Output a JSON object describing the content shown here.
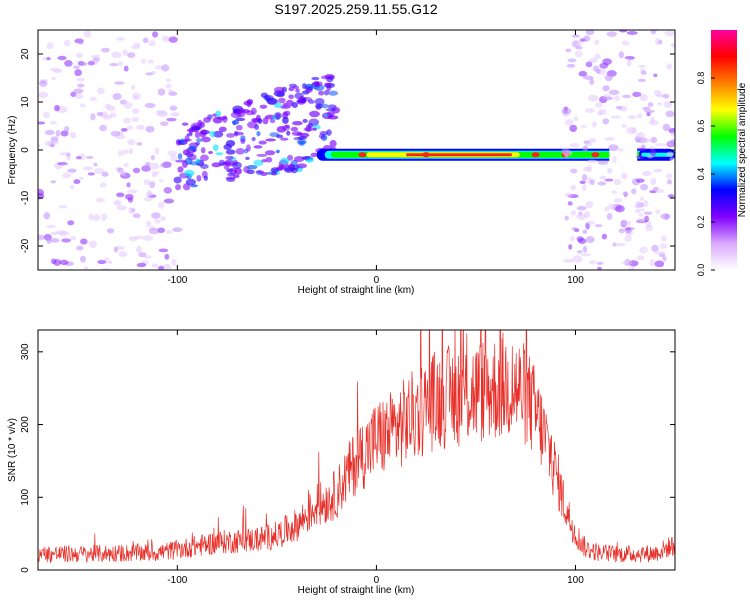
{
  "figure": {
    "title": "S197.2025.259.11.55.G12"
  },
  "colors": {
    "line": "#e8302a",
    "background": "#ffffff",
    "frame": "#000000"
  },
  "chart_data": [
    {
      "type": "heatmap",
      "title": "S197.2025.259.11.55.G12",
      "xlabel": "Height of straight line (km)",
      "ylabel": "Frequency (Hz)",
      "xlim": [
        -170,
        150
      ],
      "ylim": [
        -25,
        25
      ],
      "xticks": [
        -100,
        0,
        100
      ],
      "yticks": [
        -20,
        -10,
        0,
        10,
        20
      ],
      "xtick_labels": [
        "-100",
        "0",
        "100"
      ],
      "ytick_labels": [
        "-20",
        "-10",
        "0",
        "10",
        "20"
      ],
      "colorbar": {
        "label": "Normalized spectral amplitude",
        "range": [
          0,
          1
        ],
        "ticks": [
          0.0,
          0.2,
          0.4,
          0.6,
          0.8
        ],
        "tick_labels": [
          "0.0",
          "0.2",
          "0.4",
          "0.6",
          "0.8"
        ],
        "colormap": [
          "#ffffff",
          "#d9a8ff",
          "#8000ff",
          "#0000ff",
          "#00ffff",
          "#00ff00",
          "#ffff00",
          "#ff8000",
          "#ff0000",
          "#ff00a0"
        ]
      },
      "features": [
        {
          "name": "noise-left",
          "x_range": [
            -170,
            -100
          ],
          "f_range": [
            -25,
            25
          ],
          "amplitude": 0.1
        },
        {
          "name": "scattered-cluster",
          "x_range": [
            -100,
            -20
          ],
          "f_range": [
            -8,
            8
          ],
          "amplitude": 0.3
        },
        {
          "name": "carrier-line",
          "x_range": [
            -30,
            150
          ],
          "frequency": -1,
          "amplitude": 0.9
        },
        {
          "name": "noise-right",
          "x_range": [
            95,
            150
          ],
          "f_range": [
            -25,
            25
          ],
          "amplitude": 0.1
        }
      ]
    },
    {
      "type": "line",
      "xlabel": "Height of straight line (km)",
      "ylabel": "SNR (10 * v/v)",
      "xlim": [
        -170,
        150
      ],
      "ylim": [
        0,
        330
      ],
      "xticks": [
        -100,
        0,
        100
      ],
      "yticks": [
        0,
        100,
        200,
        300
      ],
      "xtick_labels": [
        "-100",
        "0",
        "100"
      ],
      "ytick_labels": [
        "0",
        "100",
        "200",
        "300"
      ],
      "series": [
        {
          "name": "SNR",
          "x": [
            -170,
            -150,
            -130,
            -110,
            -100,
            -90,
            -80,
            -70,
            -60,
            -50,
            -40,
            -35,
            -30,
            -25,
            -20,
            -15,
            -10,
            -5,
            0,
            5,
            10,
            15,
            20,
            25,
            30,
            40,
            50,
            60,
            65,
            70,
            75,
            80,
            85,
            90,
            95,
            100,
            105,
            110,
            120,
            130,
            140,
            150
          ],
          "values": [
            22,
            22,
            23,
            24,
            28,
            33,
            38,
            40,
            42,
            48,
            62,
            75,
            88,
            95,
            105,
            130,
            150,
            165,
            180,
            185,
            195,
            205,
            215,
            225,
            235,
            240,
            245,
            250,
            255,
            250,
            240,
            215,
            180,
            135,
            85,
            50,
            30,
            25,
            22,
            22,
            23,
            35
          ]
        }
      ]
    }
  ]
}
